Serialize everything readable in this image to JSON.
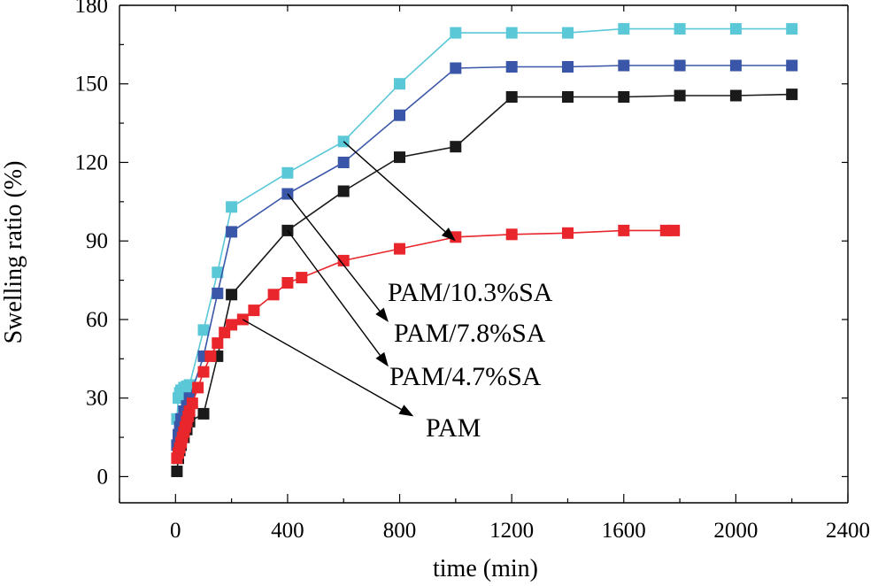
{
  "chart_data": {
    "type": "line",
    "title": "",
    "xlabel": "time (min)",
    "ylabel": "Swelling ratio (%)",
    "xlim": [
      -200,
      2400
    ],
    "ylim": [
      -10,
      180
    ],
    "xticks": [
      0,
      400,
      800,
      1200,
      1600,
      2000,
      2400
    ],
    "xtick_labels": [
      "0",
      "400",
      "800",
      "1200",
      "1600",
      "2000",
      "2400"
    ],
    "yticks": [
      0,
      30,
      60,
      90,
      120,
      150,
      180
    ],
    "ytick_labels": [
      "0",
      "30",
      "60",
      "90",
      "120",
      "150",
      "180"
    ],
    "grid": false,
    "legend": "none",
    "series": [
      {
        "name": "PAM/10.3%SA",
        "color": "#5bc8d8",
        "x": [
          5,
          10,
          15,
          20,
          30,
          40,
          50,
          100,
          150,
          200,
          400,
          600,
          800,
          1000,
          1200,
          1400,
          1600,
          1800,
          2000,
          2200
        ],
        "y": [
          22,
          30,
          32,
          33,
          34,
          34.5,
          35,
          56,
          78,
          103,
          116,
          128,
          150,
          169.5,
          169.5,
          169.5,
          171,
          171,
          171,
          171
        ]
      },
      {
        "name": "PAM/7.8%SA",
        "color": "#3a56a8",
        "x": [
          5,
          10,
          15,
          20,
          30,
          40,
          50,
          100,
          150,
          200,
          400,
          600,
          800,
          1000,
          1200,
          1400,
          1600,
          1800,
          2000,
          2200
        ],
        "y": [
          12,
          16,
          19,
          22,
          25,
          27,
          30,
          46,
          70,
          93.5,
          108,
          120,
          138,
          156,
          156.5,
          156.5,
          157,
          157,
          157,
          157
        ]
      },
      {
        "name": "PAM/4.7%SA",
        "color": "#1a1a1a",
        "x": [
          5,
          10,
          15,
          20,
          30,
          40,
          50,
          100,
          150,
          200,
          400,
          600,
          800,
          1000,
          1200,
          1400,
          1600,
          1800,
          2000,
          2200
        ],
        "y": [
          2,
          7,
          10,
          12,
          15,
          18,
          21,
          24,
          46,
          69.5,
          94,
          109,
          122,
          126,
          145,
          145,
          145,
          145.5,
          145.5,
          146
        ]
      },
      {
        "name": "PAM",
        "color": "#e8262b",
        "x": [
          5,
          10,
          15,
          20,
          25,
          30,
          35,
          40,
          45,
          50,
          60,
          80,
          100,
          125,
          150,
          175,
          200,
          240,
          280,
          350,
          400,
          450,
          600,
          800,
          1000,
          1200,
          1400,
          1600,
          1750,
          1780
        ],
        "y": [
          7,
          9,
          11,
          13,
          15,
          17,
          19,
          21,
          23,
          25,
          28,
          34,
          40,
          46,
          51,
          55,
          58,
          60,
          63.5,
          69.5,
          74,
          76,
          82.5,
          87,
          91.5,
          92.5,
          93,
          94,
          94,
          94
        ]
      }
    ],
    "annotations": [
      {
        "text": "PAM/10.3%SA",
        "from": [
          600,
          128
        ],
        "to": [
          1000,
          90
        ]
      },
      {
        "text": "PAM/7.8%SA",
        "from": [
          400,
          108
        ],
        "to": [
          760,
          59
        ]
      },
      {
        "text": "PAM/4.7%SA",
        "from": [
          400,
          94
        ],
        "to": [
          760,
          42
        ]
      },
      {
        "text": "PAM",
        "from": [
          240,
          60
        ],
        "to": [
          850,
          23
        ]
      }
    ]
  }
}
